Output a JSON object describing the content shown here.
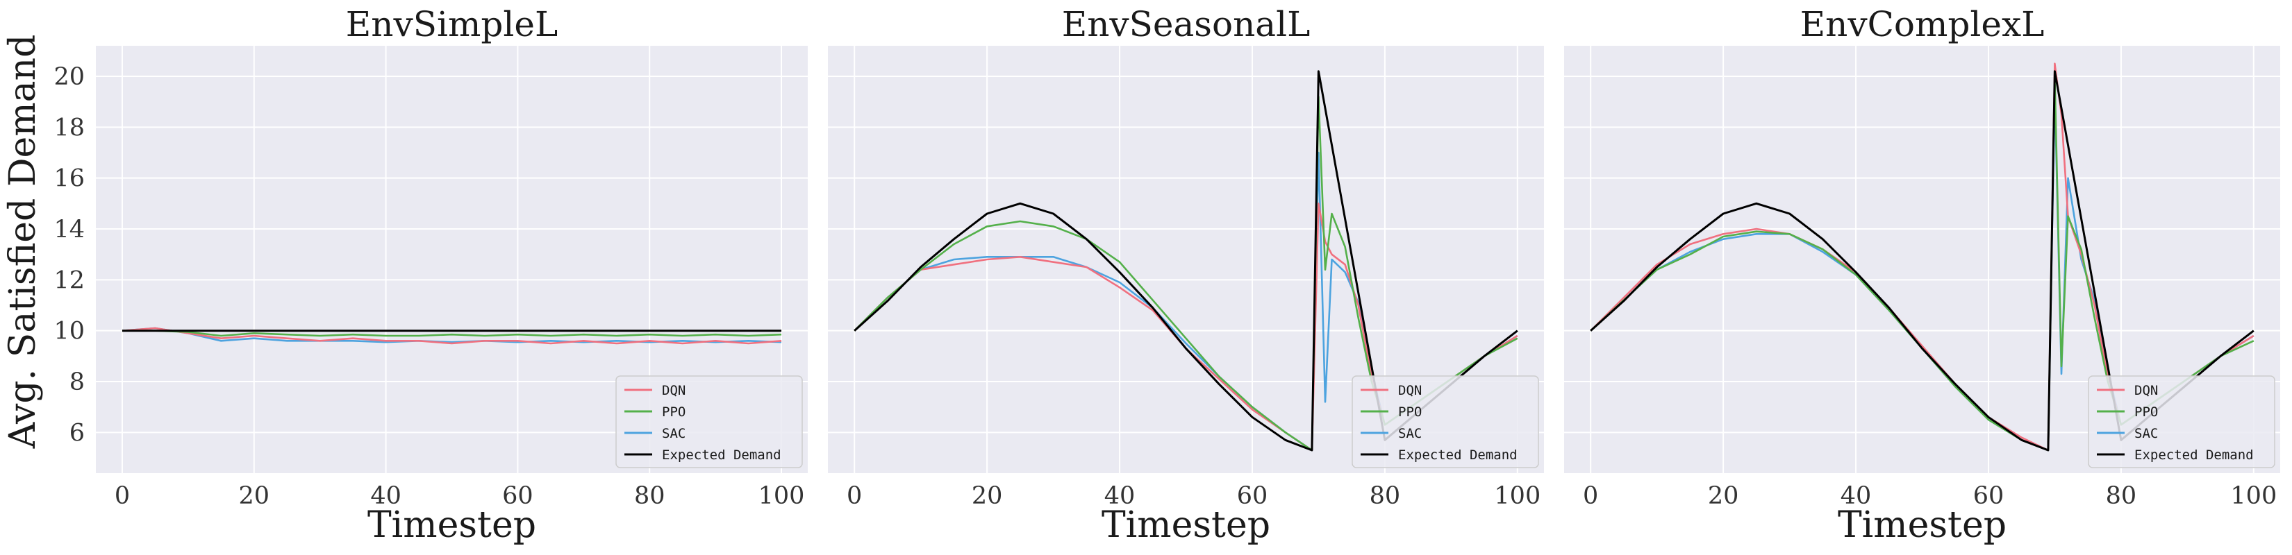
{
  "figure": {
    "ylabel": "Avg. Satisfied Demand"
  },
  "colors": {
    "DQN": "#f0707f",
    "PPO": "#54b04a",
    "SAC": "#4da3df",
    "Expected Demand": "#000000",
    "panel_bg": "#eaeaf2",
    "grid": "#ffffff"
  },
  "chart_data": [
    {
      "type": "line",
      "title": "EnvSimpleL",
      "xlabel": "Timestep",
      "ylabel": "Avg. Satisfied Demand",
      "xlim": [
        -4,
        104
      ],
      "ylim": [
        4.4,
        21.2
      ],
      "xticks": [
        0,
        20,
        40,
        60,
        80,
        100
      ],
      "yticks": [
        6,
        8,
        10,
        12,
        14,
        16,
        18,
        20
      ],
      "grid": true,
      "legend_position": "lower-right",
      "series": [
        {
          "name": "DQN",
          "x": [
            0,
            5,
            10,
            15,
            20,
            25,
            30,
            35,
            40,
            45,
            50,
            55,
            60,
            65,
            70,
            75,
            80,
            85,
            90,
            95,
            100
          ],
          "y": [
            10.0,
            10.1,
            9.9,
            9.7,
            9.8,
            9.7,
            9.6,
            9.7,
            9.6,
            9.6,
            9.5,
            9.6,
            9.6,
            9.5,
            9.6,
            9.5,
            9.6,
            9.5,
            9.6,
            9.5,
            9.6
          ]
        },
        {
          "name": "PPO",
          "x": [
            0,
            5,
            10,
            15,
            20,
            25,
            30,
            35,
            40,
            45,
            50,
            55,
            60,
            65,
            70,
            75,
            80,
            85,
            90,
            95,
            100
          ],
          "y": [
            10.0,
            10.0,
            9.95,
            9.8,
            9.9,
            9.85,
            9.8,
            9.85,
            9.8,
            9.8,
            9.85,
            9.8,
            9.85,
            9.8,
            9.85,
            9.8,
            9.85,
            9.8,
            9.85,
            9.8,
            9.85
          ]
        },
        {
          "name": "SAC",
          "x": [
            0,
            5,
            10,
            15,
            20,
            25,
            30,
            35,
            40,
            45,
            50,
            55,
            60,
            65,
            70,
            75,
            80,
            85,
            90,
            95,
            100
          ],
          "y": [
            10.0,
            10.1,
            9.9,
            9.6,
            9.7,
            9.6,
            9.6,
            9.6,
            9.55,
            9.6,
            9.55,
            9.6,
            9.55,
            9.6,
            9.55,
            9.6,
            9.55,
            9.6,
            9.55,
            9.6,
            9.55
          ]
        },
        {
          "name": "Expected Demand",
          "x": [
            0,
            100
          ],
          "y": [
            10.0,
            10.0
          ]
        }
      ]
    },
    {
      "type": "line",
      "title": "EnvSeasonalL",
      "xlabel": "Timestep",
      "xlim": [
        -4,
        104
      ],
      "ylim": [
        4.4,
        21.2
      ],
      "xticks": [
        0,
        20,
        40,
        60,
        80,
        100
      ],
      "grid": true,
      "legend_position": "lower-right",
      "series": [
        {
          "name": "DQN",
          "x": [
            0,
            5,
            10,
            15,
            20,
            25,
            30,
            35,
            40,
            45,
            50,
            55,
            60,
            65,
            69,
            70,
            71,
            72,
            74,
            76,
            78,
            80,
            85,
            90,
            95,
            100
          ],
          "y": [
            10.0,
            11.3,
            12.4,
            12.6,
            12.8,
            12.9,
            12.7,
            12.5,
            11.7,
            10.8,
            9.3,
            8.1,
            6.9,
            6.0,
            5.3,
            15.0,
            13.5,
            13.0,
            12.6,
            11.0,
            8.2,
            6.3,
            7.2,
            8.1,
            9.0,
            9.8
          ]
        },
        {
          "name": "PPO",
          "x": [
            0,
            5,
            10,
            15,
            20,
            25,
            30,
            35,
            40,
            45,
            50,
            55,
            60,
            65,
            69,
            70,
            71,
            72,
            74,
            76,
            78,
            80,
            85,
            90,
            95,
            100
          ],
          "y": [
            10.0,
            11.3,
            12.4,
            13.4,
            14.1,
            14.3,
            14.1,
            13.6,
            12.7,
            11.2,
            9.7,
            8.2,
            7.0,
            6.0,
            5.3,
            19.2,
            12.4,
            14.6,
            13.3,
            10.5,
            8.0,
            6.3,
            7.2,
            8.1,
            9.0,
            9.7
          ]
        },
        {
          "name": "SAC",
          "x": [
            0,
            5,
            10,
            15,
            20,
            25,
            30,
            35,
            40,
            45,
            50,
            55,
            60,
            65,
            69,
            70,
            71,
            72,
            74,
            76,
            78,
            80,
            85,
            90,
            95,
            100
          ],
          "y": [
            10.0,
            11.3,
            12.4,
            12.8,
            12.9,
            12.9,
            12.9,
            12.5,
            11.9,
            10.9,
            9.5,
            8.2,
            7.0,
            6.0,
            5.3,
            17.0,
            7.2,
            12.8,
            12.3,
            11.1,
            8.4,
            6.3,
            7.2,
            8.1,
            9.0,
            9.8
          ]
        },
        {
          "name": "Expected Demand",
          "x": [
            0,
            5,
            10,
            15,
            20,
            25,
            30,
            35,
            40,
            45,
            50,
            55,
            60,
            65,
            69,
            70,
            80,
            85,
            90,
            95,
            100
          ],
          "y": [
            10.0,
            11.17,
            12.5,
            13.6,
            14.6,
            15.0,
            14.6,
            13.6,
            12.3,
            10.9,
            9.3,
            7.9,
            6.6,
            5.7,
            5.3,
            20.2,
            5.7,
            6.8,
            7.9,
            9.0,
            10.0
          ]
        }
      ]
    },
    {
      "type": "line",
      "title": "EnvComplexL",
      "xlabel": "Timestep",
      "xlim": [
        -4,
        104
      ],
      "ylim": [
        4.4,
        21.2
      ],
      "xticks": [
        0,
        20,
        40,
        60,
        80,
        100
      ],
      "grid": true,
      "legend_position": "lower-right",
      "series": [
        {
          "name": "DQN",
          "x": [
            0,
            5,
            10,
            15,
            20,
            25,
            30,
            35,
            40,
            45,
            50,
            55,
            60,
            65,
            69,
            70,
            71,
            72,
            74,
            76,
            78,
            80,
            85,
            90,
            95,
            100
          ],
          "y": [
            10.0,
            11.3,
            12.6,
            13.4,
            13.8,
            14.0,
            13.8,
            13.2,
            12.3,
            10.9,
            9.4,
            7.9,
            6.6,
            5.8,
            5.3,
            20.5,
            18.5,
            14.5,
            13.0,
            11.0,
            8.2,
            6.3,
            7.2,
            8.1,
            9.0,
            9.8
          ]
        },
        {
          "name": "PPO",
          "x": [
            0,
            5,
            10,
            15,
            20,
            25,
            30,
            35,
            40,
            45,
            50,
            55,
            60,
            65,
            69,
            70,
            71,
            72,
            74,
            76,
            78,
            80,
            85,
            90,
            95,
            100
          ],
          "y": [
            10.0,
            11.2,
            12.4,
            13.0,
            13.7,
            13.9,
            13.8,
            13.2,
            12.2,
            10.8,
            9.3,
            7.8,
            6.5,
            5.7,
            5.3,
            20.0,
            8.6,
            14.5,
            13.2,
            10.5,
            8.0,
            6.3,
            7.2,
            8.1,
            9.0,
            9.6
          ]
        },
        {
          "name": "SAC",
          "x": [
            0,
            5,
            10,
            15,
            20,
            25,
            30,
            35,
            40,
            45,
            50,
            55,
            60,
            65,
            69,
            70,
            71,
            72,
            74,
            76,
            78,
            80,
            85,
            90,
            95,
            100
          ],
          "y": [
            10.0,
            11.2,
            12.4,
            13.1,
            13.6,
            13.8,
            13.8,
            13.1,
            12.2,
            10.8,
            9.3,
            7.8,
            6.5,
            5.7,
            5.3,
            19.5,
            8.3,
            16.0,
            12.8,
            11.2,
            8.4,
            6.3,
            7.2,
            8.1,
            9.0,
            9.8
          ]
        },
        {
          "name": "Expected Demand",
          "x": [
            0,
            5,
            10,
            15,
            20,
            25,
            30,
            35,
            40,
            45,
            50,
            55,
            60,
            65,
            69,
            70,
            80,
            85,
            90,
            95,
            100
          ],
          "y": [
            10.0,
            11.17,
            12.5,
            13.6,
            14.6,
            15.0,
            14.6,
            13.6,
            12.3,
            10.9,
            9.3,
            7.9,
            6.6,
            5.7,
            5.3,
            20.2,
            5.7,
            6.8,
            7.9,
            9.0,
            10.0
          ]
        }
      ]
    }
  ]
}
